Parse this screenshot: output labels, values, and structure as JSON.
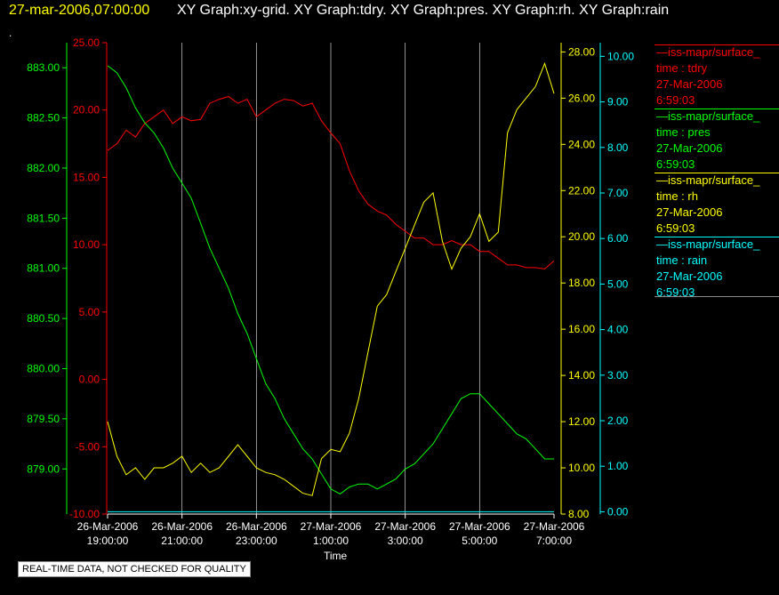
{
  "header": {
    "time": "27-mar-2006,07:00:00",
    "titles": "XY Graph:xy-grid.  XY Graph:tdry.  XY Graph:pres.  XY Graph:rh.  XY Graph:rain",
    "dot": "."
  },
  "footer_note": "REAL-TIME DATA, NOT CHECKED FOR QUALITY",
  "colors": {
    "tdry": "#ff0000",
    "pres": "#00ff00",
    "rh": "#ffff00",
    "rain": "#00ffff",
    "grid": "#d0d0d0"
  },
  "legend": [
    {
      "line": "—iss-mapr/surface_",
      "l2": "time : tdry",
      "l3": "27-Mar-2006",
      "l4": "6:59:03",
      "color": "#ff0000"
    },
    {
      "line": "—iss-mapr/surface_",
      "l2": "time : pres",
      "l3": "27-Mar-2006",
      "l4": "6:59:03",
      "color": "#00ff00"
    },
    {
      "line": "—iss-mapr/surface_",
      "l2": "time : rh",
      "l3": "27-Mar-2006",
      "l4": "6:59:03",
      "color": "#ffff00"
    },
    {
      "line": "—iss-mapr/surface_",
      "l2": "time : rain",
      "l3": "27-Mar-2006",
      "l4": "6:59:03",
      "color": "#00ffff"
    }
  ],
  "chart_data": {
    "type": "line",
    "xlabel": "Time",
    "x_ticks": [
      [
        "26-Mar-2006",
        "19:00:00"
      ],
      [
        "26-Mar-2006",
        "21:00:00"
      ],
      [
        "26-Mar-2006",
        "23:00:00"
      ],
      [
        "27-Mar-2006",
        "1:00:00"
      ],
      [
        "27-Mar-2006",
        "3:00:00"
      ],
      [
        "27-Mar-2006",
        "5:00:00"
      ],
      [
        "27-Mar-2006",
        "7:00:00"
      ]
    ],
    "x_range_hours": [
      0,
      12
    ],
    "axes": {
      "pres": {
        "ylim": [
          878.55,
          883.25
        ],
        "ticks": [
          "879.00",
          "879.50",
          "880.00",
          "880.50",
          "881.00",
          "881.50",
          "882.00",
          "882.50",
          "883.00"
        ],
        "tick_values": [
          879,
          879.5,
          880,
          880.5,
          881,
          881.5,
          882,
          882.5,
          883
        ]
      },
      "tdry": {
        "ylim": [
          -10,
          25
        ],
        "ticks": [
          "-10.00",
          "-5.00",
          "0.00",
          "5.00",
          "10.00",
          "15.00",
          "20.00",
          "25.00"
        ],
        "tick_values": [
          -10,
          -5,
          0,
          5,
          10,
          15,
          20,
          25
        ]
      },
      "rh": {
        "ylim": [
          8,
          28.4
        ],
        "ticks": [
          "8.00",
          "10.00",
          "12.00",
          "14.00",
          "16.00",
          "18.00",
          "20.00",
          "22.00",
          "24.00",
          "26.00",
          "28.00"
        ],
        "tick_values": [
          8,
          10,
          12,
          14,
          16,
          18,
          20,
          22,
          24,
          26,
          28
        ]
      },
      "rain": {
        "ylim": [
          -0.05,
          10.3
        ],
        "ticks": [
          "0.00",
          "1.00",
          "2.00",
          "3.00",
          "4.00",
          "5.00",
          "6.00",
          "7.00",
          "8.00",
          "9.00",
          "10.00"
        ],
        "tick_values": [
          0,
          1,
          2,
          3,
          4,
          5,
          6,
          7,
          8,
          9,
          10
        ]
      }
    },
    "series": [
      {
        "name": "tdry",
        "axis": "tdry",
        "x": [
          0,
          0.25,
          0.5,
          0.75,
          1,
          1.25,
          1.5,
          1.75,
          2,
          2.25,
          2.5,
          2.75,
          3,
          3.25,
          3.5,
          3.75,
          4,
          4.25,
          4.5,
          4.75,
          5,
          5.25,
          5.5,
          5.75,
          6,
          6.25,
          6.5,
          6.75,
          7,
          7.25,
          7.5,
          7.75,
          8,
          8.25,
          8.5,
          8.75,
          9,
          9.25,
          9.5,
          9.75,
          10,
          10.25,
          10.5,
          10.75,
          11,
          11.25,
          11.5,
          11.75,
          12
        ],
        "y": [
          17,
          17.5,
          18.5,
          18,
          19,
          19.5,
          20,
          19,
          19.5,
          19.2,
          19.3,
          20.5,
          20.8,
          21,
          20.5,
          20.8,
          19.5,
          20,
          20.5,
          20.8,
          20.7,
          20.3,
          20.5,
          19.2,
          18.3,
          17.5,
          15.5,
          14,
          13,
          12.5,
          12.2,
          11.5,
          11,
          10.5,
          10.5,
          10,
          10,
          10.3,
          10,
          10,
          9.5,
          9.5,
          9,
          8.5,
          8.5,
          8.3,
          8.3,
          8.2,
          8.8
        ]
      },
      {
        "name": "pres",
        "axis": "pres",
        "x": [
          0,
          0.25,
          0.5,
          0.75,
          1,
          1.25,
          1.5,
          1.75,
          2,
          2.25,
          2.5,
          2.75,
          3,
          3.25,
          3.5,
          3.75,
          4,
          4.25,
          4.5,
          4.75,
          5,
          5.25,
          5.5,
          5.75,
          6,
          6.25,
          6.5,
          6.75,
          7,
          7.25,
          7.5,
          7.75,
          8,
          8.25,
          8.5,
          8.75,
          9,
          9.25,
          9.5,
          9.75,
          10,
          10.25,
          10.5,
          10.75,
          11,
          11.25,
          11.5,
          11.75,
          12
        ],
        "y": [
          883.02,
          882.95,
          882.8,
          882.6,
          882.45,
          882.35,
          882.2,
          882,
          881.85,
          881.7,
          881.45,
          881.2,
          881,
          880.8,
          880.55,
          880.35,
          880.1,
          879.85,
          879.7,
          879.5,
          879.35,
          879.2,
          879.1,
          878.95,
          878.8,
          878.75,
          878.82,
          878.85,
          878.85,
          878.8,
          878.85,
          878.9,
          879.0,
          879.05,
          879.15,
          879.25,
          879.4,
          879.55,
          879.7,
          879.75,
          879.75,
          879.65,
          879.55,
          879.45,
          879.35,
          879.3,
          879.2,
          879.1,
          879.1
        ]
      },
      {
        "name": "rh",
        "axis": "rh",
        "x": [
          0,
          0.25,
          0.5,
          0.75,
          1,
          1.25,
          1.5,
          1.75,
          2,
          2.25,
          2.5,
          2.75,
          3,
          3.25,
          3.5,
          3.75,
          4,
          4.25,
          4.5,
          4.75,
          5,
          5.25,
          5.5,
          5.75,
          6,
          6.25,
          6.5,
          6.75,
          7,
          7.25,
          7.5,
          7.75,
          8,
          8.25,
          8.5,
          8.75,
          9,
          9.25,
          9.5,
          9.75,
          10,
          10.25,
          10.5,
          10.75,
          11,
          11.25,
          11.5,
          11.75,
          12
        ],
        "y": [
          12,
          10.5,
          9.7,
          10,
          9.5,
          10,
          10,
          10.2,
          10.5,
          9.8,
          10.2,
          9.8,
          10,
          10.5,
          11,
          10.5,
          10,
          9.8,
          9.7,
          9.5,
          9.2,
          8.9,
          8.8,
          10.4,
          10.8,
          10.7,
          11.5,
          13,
          15,
          17,
          17.5,
          18.5,
          19.5,
          20.5,
          21.5,
          21.9,
          19.8,
          18.6,
          19.5,
          20,
          21,
          19.8,
          20.2,
          24.5,
          25.5,
          26,
          26.5,
          27.5,
          26.2
        ]
      },
      {
        "name": "rain",
        "axis": "rain",
        "x": [
          0,
          12
        ],
        "y": [
          0,
          0
        ]
      }
    ]
  }
}
